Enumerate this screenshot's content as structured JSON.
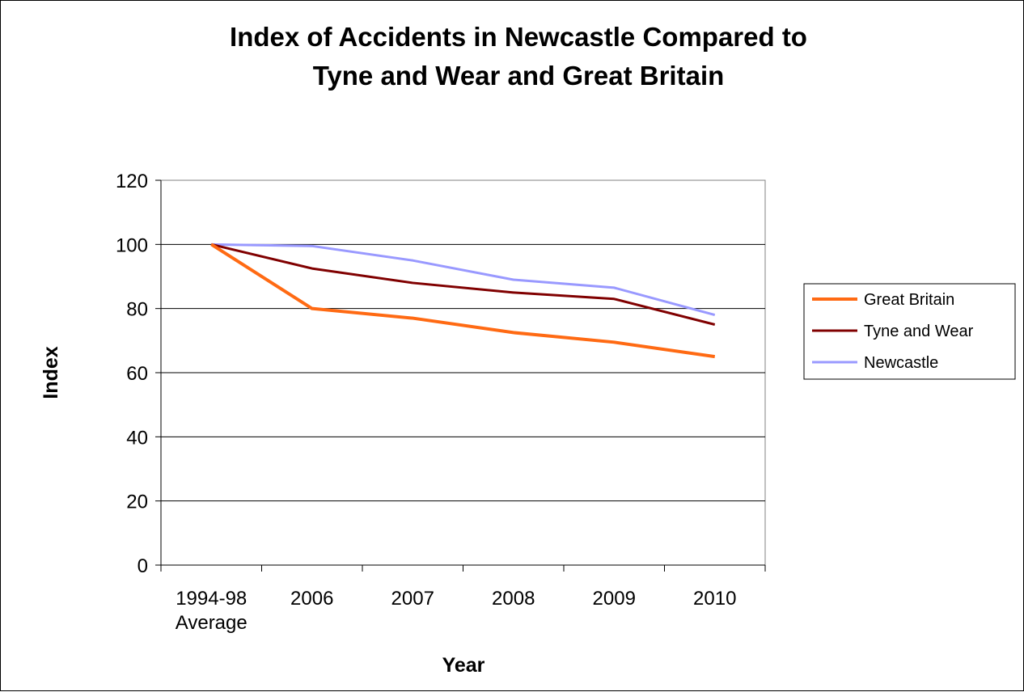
{
  "chart_data": {
    "type": "line",
    "title_lines": [
      "Index of Accidents in Newcastle Compared to",
      "Tyne and Wear and Great Britain"
    ],
    "xlabel": "Year",
    "ylabel": "Index",
    "categories": [
      [
        "1994-98",
        "Average"
      ],
      [
        "2006"
      ],
      [
        "2007"
      ],
      [
        "2008"
      ],
      [
        "2009"
      ],
      [
        "2010"
      ]
    ],
    "ylim": [
      0,
      120
    ],
    "yticks": [
      "0",
      "20",
      "40",
      "60",
      "80",
      "100",
      "120"
    ],
    "grid": true,
    "legend_position": "right",
    "series": [
      {
        "name": "Great Britain",
        "color": "#FF6A13",
        "values": [
          100,
          80,
          77,
          72.5,
          69.5,
          65
        ]
      },
      {
        "name": "Tyne and Wear",
        "color": "#800000",
        "values": [
          100,
          92.5,
          88,
          85,
          83,
          75
        ]
      },
      {
        "name": "Newcastle",
        "color": "#9999FF",
        "values": [
          100,
          99.5,
          95,
          89,
          86.5,
          78
        ]
      }
    ]
  }
}
